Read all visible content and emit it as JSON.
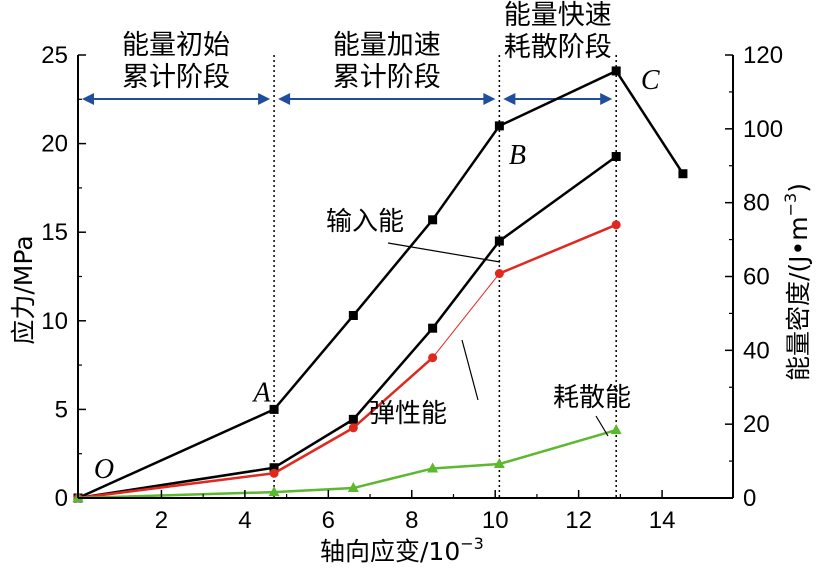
{
  "chart_data": {
    "type": "line",
    "xlabel": "轴向应变/10",
    "xlabel_exp": "−3",
    "ylabel_left": "应力/MPa",
    "ylabel_right": "能量密度/(J•m",
    "ylabel_right_exp": "−3",
    "ylabel_right_close": ")",
    "xlim": [
      0,
      15.7
    ],
    "ylim_left": [
      0,
      25
    ],
    "ylim_right": [
      0,
      120
    ],
    "xticks": [
      2,
      4,
      6,
      8,
      10,
      12,
      14
    ],
    "yticks_left": [
      0,
      5,
      10,
      15,
      20,
      25
    ],
    "yticks_right": [
      0,
      20,
      40,
      60,
      80,
      100,
      120
    ],
    "grid": false,
    "series": [
      {
        "axis": "left",
        "marker": "square",
        "color": "#000000",
        "x": [
          0,
          4.7,
          6.6,
          8.5,
          10.1,
          12.9,
          14.5
        ],
        "y": [
          0,
          5.0,
          10.3,
          15.7,
          21.0,
          24.1,
          18.3
        ]
      },
      {
        "name": "输入能",
        "axis": "right",
        "marker": "square",
        "color": "#000000",
        "x": [
          0,
          4.7,
          6.6,
          8.5,
          10.1,
          12.9
        ],
        "y": [
          0,
          8.2,
          21.3,
          46.0,
          69.6,
          92.5
        ]
      },
      {
        "name": "弹性能",
        "axis": "right",
        "marker": "circle",
        "color": "#e0281e",
        "x": [
          0,
          4.7,
          6.6,
          8.5,
          10.1,
          12.9
        ],
        "y": [
          0,
          6.7,
          19.0,
          38.0,
          60.8,
          74.0
        ]
      },
      {
        "name": "耗散能",
        "axis": "right",
        "marker": "triangle",
        "color": "#5cb82e",
        "x": [
          0,
          4.7,
          6.6,
          8.5,
          10.1,
          12.9
        ],
        "y": [
          0,
          1.6,
          2.7,
          8.0,
          9.2,
          18.4
        ]
      }
    ],
    "stage_boundaries": [
      4.7,
      10.1,
      12.9
    ],
    "stages": [
      {
        "line1": "能量初始",
        "line2": "累计阶段"
      },
      {
        "line1": "能量加速",
        "line2": "累计阶段"
      },
      {
        "line1": "能量快速",
        "line2": "耗散阶段"
      }
    ],
    "point_labels": [
      {
        "text": "O",
        "x": 0,
        "y": 0
      },
      {
        "text": "A",
        "x": 4.7,
        "y": 5.0
      },
      {
        "text": "B",
        "x": 10.1,
        "y": 21.0
      },
      {
        "text": "C",
        "x": 12.9,
        "y": 24.1
      }
    ],
    "colors": {
      "axis": "#000000",
      "stage_arrow": "#1f4e9c"
    }
  }
}
